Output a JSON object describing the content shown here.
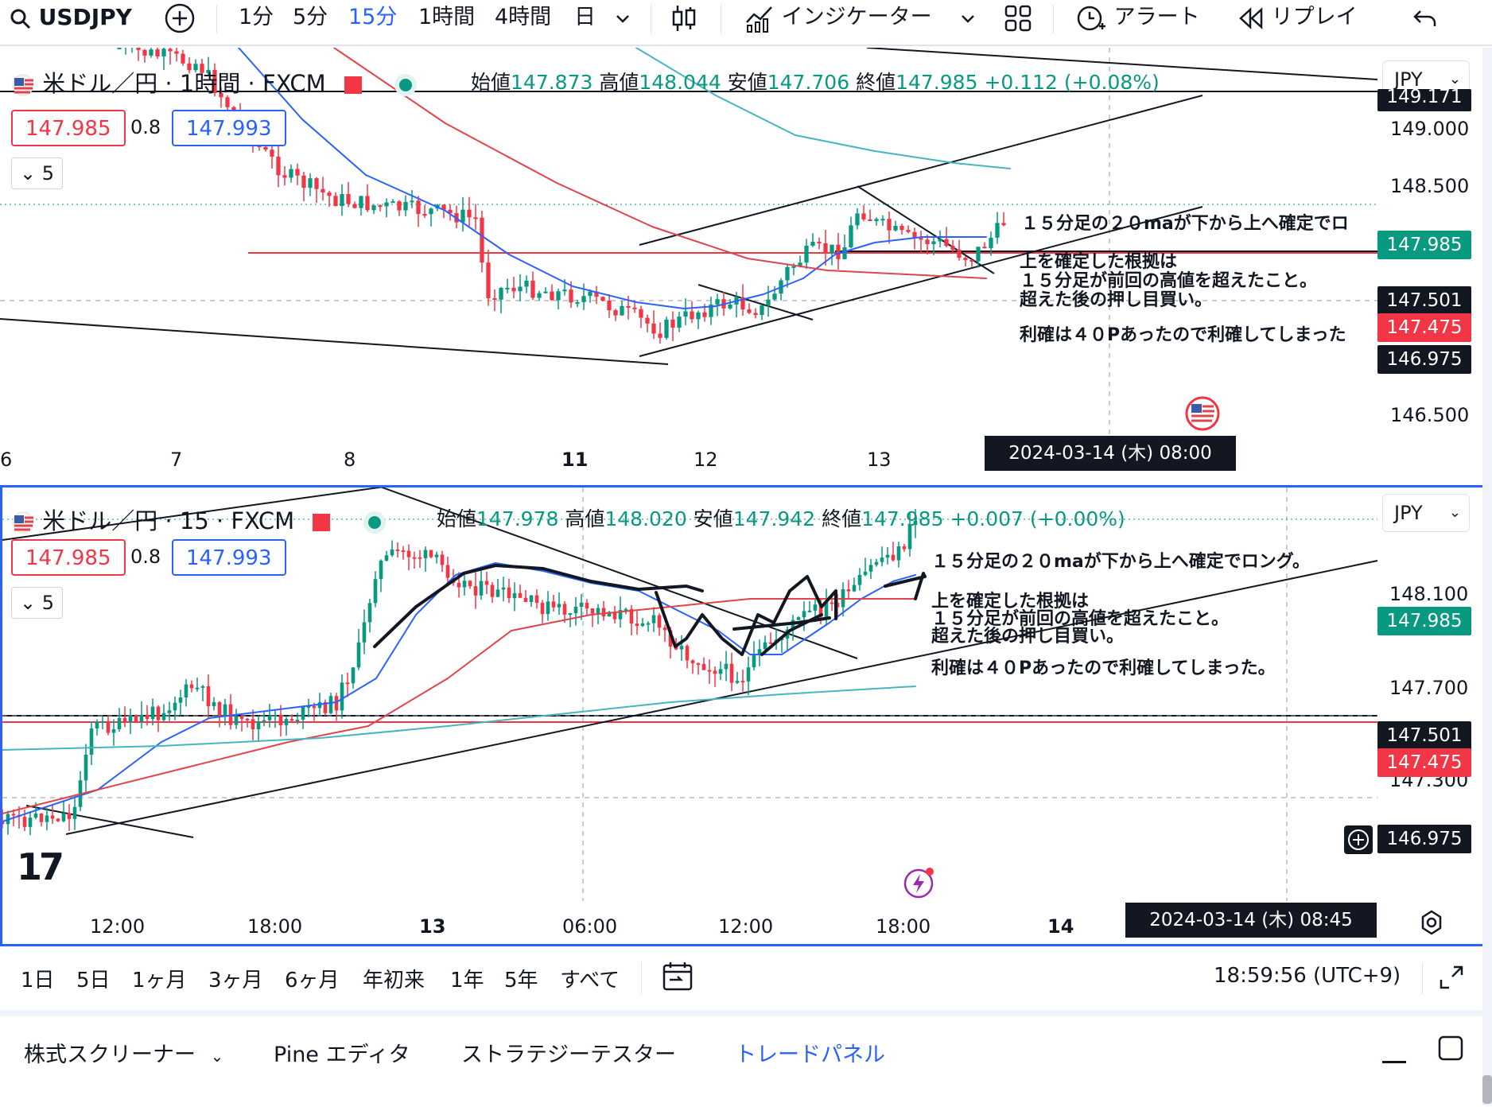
{
  "toolbar": {
    "symbol": "USDJPY",
    "intervals": [
      "1分",
      "5分",
      "15分",
      "1時間",
      "4時間",
      "日"
    ],
    "active_interval": "15分",
    "indicators": "インジケーター",
    "alert": "アラート",
    "replay": "リプレイ"
  },
  "colors": {
    "accent": "#2962ff",
    "up": "#089981",
    "down": "#f23645",
    "ma_blue": "#2962ff",
    "ma_red": "#e0444a",
    "ma_teal": "#46b5c2",
    "dark_label": "#131722"
  },
  "pane_top": {
    "title": "米ドル／円 · 1時間 · FXCM",
    "ohlc": {
      "open_label": "始値",
      "open": "147.873",
      "high_label": "高値",
      "high": "148.044",
      "low_label": "安値",
      "low": "147.706",
      "close_label": "終値",
      "close": "147.985",
      "change": "+0.112 (+0.08%)"
    },
    "bid": "147.985",
    "spread": "0.8",
    "ask": "147.993",
    "collapse_label": "5",
    "currency": "JPY",
    "price_axis": [
      "149.000",
      "148.500",
      "146.500"
    ],
    "price_labels": {
      "top_partial": "149.171",
      "current": "147.985",
      "black_line": "147.501",
      "red_line": "147.475",
      "dashed": "146.975"
    },
    "time_axis": [
      "6",
      "7",
      "8",
      "11",
      "12",
      "13"
    ],
    "date_tag": "2024-03-14 (木)  08:00",
    "notes": [
      "１５分足の２０maが下から上へ確定でロ",
      "上を確定した根拠は",
      "１５分足が前回の高値を超えたこと。",
      "超えた後の押し目買い。",
      "利確は４０Pあったので利確してしまった"
    ]
  },
  "pane_bottom": {
    "title": "米ドル／円 · 15 · FXCM",
    "ohlc": {
      "open_label": "始値",
      "open": "147.978",
      "high_label": "高値",
      "high": "148.020",
      "low_label": "安値",
      "low": "147.942",
      "close_label": "終値",
      "close": "147.985",
      "change": "+0.007 (+0.00%)"
    },
    "bid": "147.985",
    "spread": "0.8",
    "ask": "147.993",
    "collapse_label": "5",
    "currency": "JPY",
    "price_axis": [
      "148.100",
      "147.700",
      "147.300"
    ],
    "price_labels": {
      "current": "147.985",
      "black_line": "147.501",
      "red_line": "147.475",
      "dashed": "146.975"
    },
    "time_axis": [
      "12:00",
      "18:00",
      "13",
      "06:00",
      "12:00",
      "18:00",
      "14"
    ],
    "date_tag": "2024-03-14 (木)   08:45",
    "notes": [
      "１５分足の２０maが下から上へ確定でロング。",
      "上を確定した根拠は",
      "１５分足が前回の高値を超えたこと。",
      "超えた後の押し目買い。",
      "利確は４０Pあったので利確してしまった。"
    ],
    "watermark": "17"
  },
  "range_bar": {
    "ranges": [
      "1日",
      "5日",
      "1ヶ月",
      "3ヶ月",
      "6ヶ月",
      "年初来",
      "1年",
      "5年",
      "すべて"
    ],
    "clock": "18:59:56 (UTC+9)"
  },
  "bottom_tabs": {
    "tabs": [
      "株式スクリーナー",
      "Pine エディタ",
      "ストラテジーテスター",
      "トレードパネル"
    ],
    "active": "トレードパネル"
  }
}
